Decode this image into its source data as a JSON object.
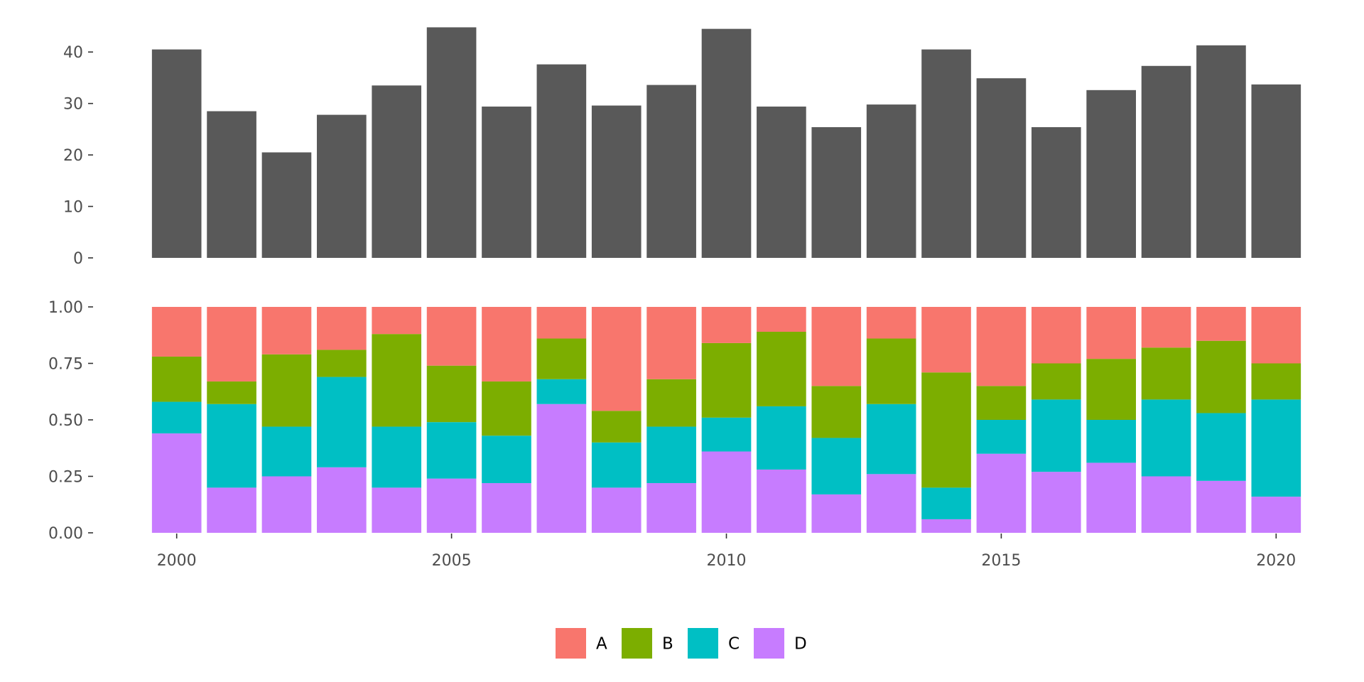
{
  "chart_data": [
    {
      "type": "bar",
      "x": [
        2000,
        2001,
        2002,
        2003,
        2004,
        2005,
        2006,
        2007,
        2008,
        2009,
        2010,
        2011,
        2012,
        2013,
        2014,
        2015,
        2016,
        2017,
        2018,
        2019,
        2020
      ],
      "values": [
        40.5,
        28.5,
        20.5,
        27.8,
        33.5,
        44.8,
        29.4,
        37.6,
        29.6,
        33.6,
        44.5,
        29.4,
        25.4,
        29.8,
        40.5,
        34.9,
        25.4,
        32.6,
        37.3,
        41.3,
        33.7
      ],
      "ylim": [
        0,
        45
      ],
      "yticks": [
        0,
        10,
        20,
        30,
        40
      ],
      "yticklabels": [
        "0",
        "10",
        "20",
        "30",
        "40"
      ],
      "color": "#595959",
      "grid": false
    },
    {
      "type": "bar",
      "stacked": "fill",
      "x": [
        2000,
        2001,
        2002,
        2003,
        2004,
        2005,
        2006,
        2007,
        2008,
        2009,
        2010,
        2011,
        2012,
        2013,
        2014,
        2015,
        2016,
        2017,
        2018,
        2019,
        2020
      ],
      "series": [
        {
          "name": "A",
          "color": "#F8766D",
          "values": [
            0.22,
            0.33,
            0.21,
            0.19,
            0.12,
            0.26,
            0.33,
            0.14,
            0.46,
            0.32,
            0.16,
            0.11,
            0.35,
            0.14,
            0.29,
            0.35,
            0.25,
            0.23,
            0.18,
            0.15,
            0.25
          ]
        },
        {
          "name": "B",
          "color": "#7CAE00",
          "values": [
            0.2,
            0.1,
            0.32,
            0.12,
            0.41,
            0.25,
            0.24,
            0.18,
            0.14,
            0.21,
            0.33,
            0.33,
            0.23,
            0.29,
            0.51,
            0.15,
            0.16,
            0.27,
            0.23,
            0.32,
            0.16
          ]
        },
        {
          "name": "C",
          "color": "#00BFC4",
          "values": [
            0.14,
            0.37,
            0.22,
            0.4,
            0.27,
            0.25,
            0.21,
            0.11,
            0.2,
            0.25,
            0.15,
            0.28,
            0.25,
            0.31,
            0.14,
            0.15,
            0.32,
            0.19,
            0.34,
            0.3,
            0.43
          ]
        },
        {
          "name": "D",
          "color": "#C77CFF",
          "values": [
            0.44,
            0.2,
            0.25,
            0.29,
            0.2,
            0.24,
            0.22,
            0.57,
            0.2,
            0.22,
            0.36,
            0.28,
            0.17,
            0.26,
            0.06,
            0.35,
            0.27,
            0.31,
            0.25,
            0.23,
            0.16
          ]
        }
      ],
      "ylim": [
        0,
        1
      ],
      "yticks": [
        0,
        0.25,
        0.5,
        0.75,
        1
      ],
      "yticklabels": [
        "0.00",
        "0.25",
        "0.50",
        "0.75",
        "1.00"
      ],
      "xticks": [
        2000,
        2005,
        2010,
        2015,
        2020
      ],
      "xticklabels": [
        "2000",
        "2005",
        "2010",
        "2015",
        "2020"
      ],
      "grid": false
    }
  ],
  "legend": {
    "placement": "bottom",
    "items": [
      {
        "label": "A",
        "color": "#F8766D"
      },
      {
        "label": "B",
        "color": "#7CAE00"
      },
      {
        "label": "C",
        "color": "#00BFC4"
      },
      {
        "label": "D",
        "color": "#C77CFF"
      }
    ]
  }
}
